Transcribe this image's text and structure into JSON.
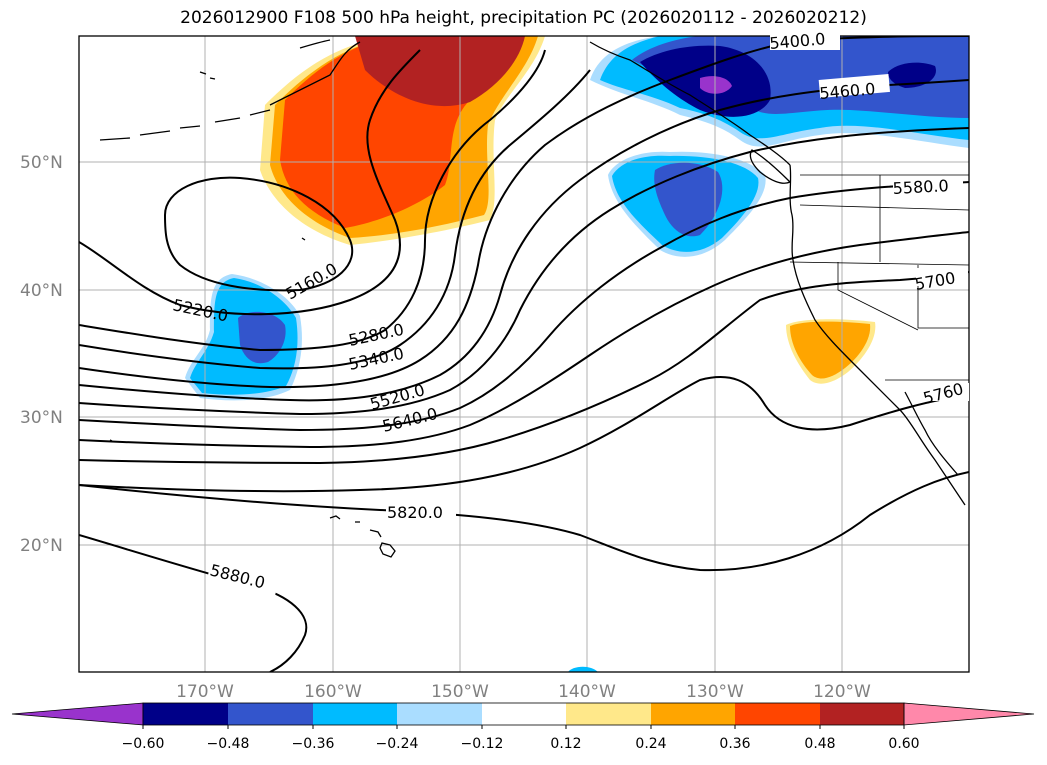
{
  "title": "2026012900 F108 500 hPa height, precipitation PC (2026020112 - 2026020212)",
  "lat_labels": [
    "50°N",
    "40°N",
    "30°N",
    "20°N"
  ],
  "lon_labels": [
    "170°W",
    "160°W",
    "150°W",
    "140°W",
    "130°W",
    "120°W"
  ],
  "colorbar": {
    "ticks": [
      "−0.60",
      "−0.48",
      "−0.36",
      "−0.24",
      "−0.12",
      "0.12",
      "0.24",
      "0.36",
      "0.48",
      "0.60"
    ],
    "colors": [
      "#9933cc",
      "#000088",
      "#3355cc",
      "#00bbff",
      "#aaddff",
      "#ffffff",
      "#ffe88a",
      "#ffa500",
      "#ff4500",
      "#b22222",
      "#ff88aa"
    ]
  },
  "contour_labels": [
    "5400.0",
    "5460.0",
    "5580.0",
    "5700",
    "5760",
    "5160.0",
    "5220.0",
    "5280.0",
    "5340.0",
    "5520.0",
    "5640.0",
    "5820.0",
    "5880.0"
  ]
}
